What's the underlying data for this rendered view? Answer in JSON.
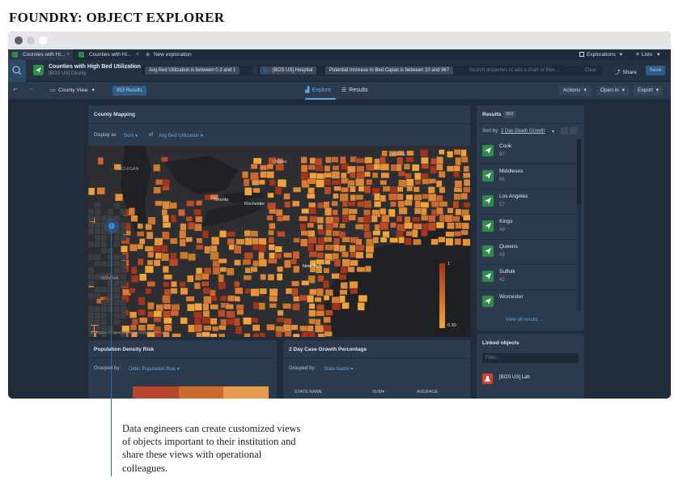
{
  "page": {
    "heading": "FOUNDRY: OBJECT EXPLORER",
    "caption": "Data engineers can create customized views of objects important to their institution and share these views with operational colleagues."
  },
  "tabs": [
    {
      "label": "Counties with Hi...",
      "active": true
    },
    {
      "label": "Counties with Hi...",
      "active": false
    }
  ],
  "new_tab_label": "New exploration",
  "explorations_label": "Explorations",
  "lists_label": "Lists",
  "object": {
    "title": "Counties with High Bed Utilization",
    "subtitle": "[BOS US] County"
  },
  "filters": [
    "Avg Bed Utilization is between 0.3 and 1",
    "[BOS US] Hospital",
    "Potential Increase In Bed Capac is between 10 and 967"
  ],
  "filter_placeholder": "Search properties to add a chart or filter...",
  "clear_label": "Clear",
  "share_label": "Share",
  "save_label": "Save",
  "toolbar": {
    "county_view": "County View",
    "results_count": "953 Results",
    "explore_tab": "Explore",
    "results_tab": "Results",
    "actions": "Actions",
    "open_in": "Open in",
    "export": "Export"
  },
  "county_mapping": {
    "title": "County Mapping",
    "display_as": "Display as",
    "aggregation": "Sum",
    "of": "of",
    "property": "Avg Bed Utilization",
    "legend_max": "1",
    "legend_min": "0.30",
    "attribution": "© Mapbox © OpenStreetMap Improve this map",
    "places": [
      "Ottawa",
      "MAINE",
      "MICHIGAN",
      "Toronto",
      "Rochester",
      "New York",
      "INDIANA"
    ]
  },
  "population_panel": {
    "title": "Population Density Risk",
    "grouped_by": "Grouped by:",
    "group_value": "Older Population Risk"
  },
  "case_growth_panel": {
    "title": "2 Day Case Growth Percentage",
    "grouped_by": "Grouped by:",
    "group_value": "State Name",
    "columns": [
      "STATE NAME",
      "SUM",
      "AVERAGE"
    ]
  },
  "results_panel": {
    "title": "Results",
    "count": "953",
    "sort_by": "Sort by",
    "sort_field": "2 Day Death Growth",
    "items": [
      {
        "name": "Cook",
        "value": "97"
      },
      {
        "name": "Middlesex",
        "value": "66"
      },
      {
        "name": "Los Angeles",
        "value": "57"
      },
      {
        "name": "Kings",
        "value": "49"
      },
      {
        "name": "Queens",
        "value": "43"
      },
      {
        "name": "Suffolk",
        "value": "42"
      },
      {
        "name": "Worcester",
        "value": ""
      }
    ],
    "view_all": "View all results"
  },
  "linked_panel": {
    "title": "Linked objects",
    "filter_placeholder": "Filter...",
    "items": [
      "[BOS US] Lab"
    ]
  },
  "colors": {
    "window_bg": "#2b3a4c",
    "accent": "#5fa8e8",
    "object_green": "#2e8b4a",
    "heat_low": "#f0a53c",
    "heat_high": "#a4341c"
  }
}
